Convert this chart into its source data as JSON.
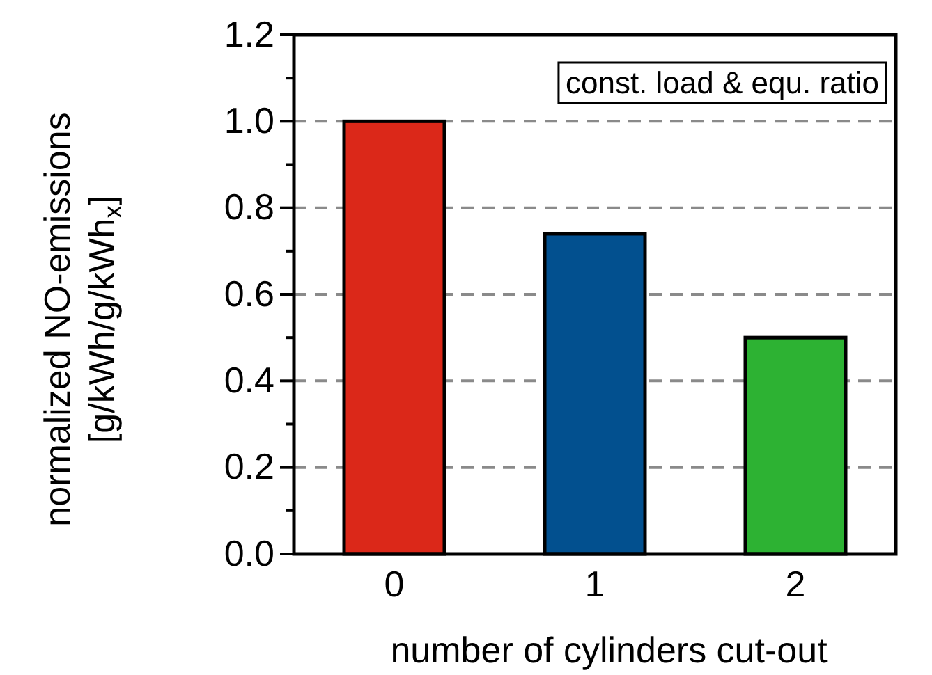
{
  "chart_data": {
    "type": "bar",
    "xlabel": "number of cylinders cut-out",
    "ylabel": "normalized NO-emissions\n[g/kWh/g/kWh$_{x}$]",
    "categories": [
      "0",
      "1",
      "2"
    ],
    "values": [
      1.0,
      0.74,
      0.5
    ],
    "colors": [
      "#db2819",
      "#02508f",
      "#2db233"
    ],
    "ylim": [
      0,
      1.2
    ],
    "yticks": [
      {
        "value": 0,
        "label": "0.0"
      },
      {
        "value": 0.1,
        "label": null
      },
      0.2,
      {
        "value": 0.3,
        "label": null
      },
      0.4,
      {
        "value": 0.5,
        "label": null
      },
      0.6,
      {
        "value": 0.7,
        "label": null
      },
      0.8,
      {
        "value": 0.9,
        "label": null
      },
      {
        "value": 1,
        "label": "1.0"
      },
      {
        "value": 1.1,
        "label": null
      },
      1.2
    ],
    "grid": "y",
    "annotations": [
      "const. load & equ. ratio"
    ]
  }
}
